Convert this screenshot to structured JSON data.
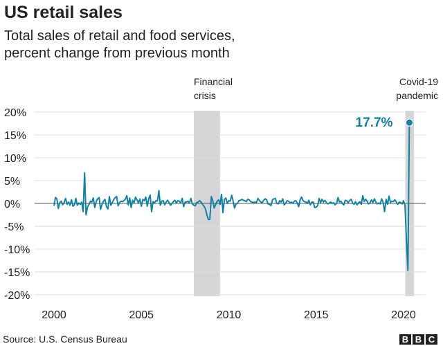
{
  "chart_data": {
    "type": "line",
    "title": "US retail sales",
    "subtitle_lines": [
      "Total sales of retail and food services,",
      "percent change from previous month"
    ],
    "xlabel": "",
    "ylabel": "",
    "start": "2000-01",
    "frequency": "monthly",
    "ylim": [
      -20,
      20
    ],
    "xlim": [
      2000,
      2020.5
    ],
    "yticks": [
      20,
      15,
      10,
      5,
      0,
      -5,
      -10,
      -15,
      -20
    ],
    "ytick_labels": [
      "20%",
      "15%",
      "10%",
      "5%",
      "0%",
      "-5%",
      "-10%",
      "-15%",
      "-20%"
    ],
    "xticks": [
      2000,
      2005,
      2010,
      2015,
      2020
    ],
    "xtick_labels": [
      "2000",
      "2005",
      "2010",
      "2015",
      "2020"
    ],
    "grid": true,
    "color": "#1380a1",
    "shade_color": "#d5d5d8",
    "series": [
      {
        "name": "Monthly % change",
        "values": [
          -0.5,
          1.3,
          1.0,
          -1.1,
          0.2,
          0.5,
          -0.3,
          0.2,
          1.1,
          -0.2,
          0.3,
          -0.4,
          0.8,
          -0.6,
          -0.3,
          1.1,
          -0.4,
          0.1,
          -0.2,
          0.3,
          -1.8,
          6.7,
          -2.5,
          -0.8,
          -0.2,
          0.5,
          0.3,
          1.2,
          -0.9,
          0.4,
          1.0,
          1.3,
          -1.3,
          -0.2,
          0.5,
          0.9,
          -0.7,
          -1.2,
          1.5,
          -0.4,
          0.2,
          0.8,
          1.3,
          1.5,
          -0.5,
          0.2,
          0.5,
          0.4,
          0.6,
          0.9,
          1.7,
          -0.3,
          1.2,
          -0.9,
          0.7,
          0.2,
          1.4,
          0.8,
          0.1,
          1.0,
          -0.6,
          0.9,
          0.6,
          1.4,
          -0.6,
          1.0,
          1.8,
          -1.8,
          0.4,
          0.1,
          0.6,
          0.5,
          2.8,
          -0.4,
          0.5,
          0.6,
          -0.3,
          0.3,
          0.7,
          0.2,
          -0.4,
          0.0,
          0.4,
          0.7,
          0.1,
          0.6,
          0.5,
          0.1,
          1.1,
          -0.7,
          0.3,
          0.3,
          0.5,
          0.1,
          1.1,
          -0.1,
          -0.4,
          -0.5,
          0.2,
          0.3,
          0.6,
          0.3,
          -0.2,
          -0.6,
          -1.2,
          -2.5,
          -3.5,
          -3.5,
          1.5,
          0.6,
          -1.0,
          -0.2,
          0.5,
          0.8,
          -0.2,
          2.0,
          -2.0,
          0.9,
          1.2,
          0.0,
          0.6,
          0.5,
          1.8,
          0.5,
          -1.0,
          -0.1,
          0.0,
          0.6,
          0.7,
          0.9,
          0.7,
          0.6,
          0.4,
          0.9,
          0.8,
          0.4,
          0.3,
          0.2,
          0.3,
          0.2,
          1.1,
          0.6,
          0.3,
          0.2,
          0.7,
          1.0,
          0.8,
          -0.1,
          -0.2,
          -0.5,
          0.8,
          1.0,
          1.1,
          0.0,
          -0.1,
          0.6,
          0.3,
          1.0,
          -0.3,
          0.0,
          0.6,
          0.5,
          0.1,
          0.3,
          0.0,
          0.5,
          0.6,
          0.1,
          -0.7,
          0.8,
          1.4,
          0.6,
          0.4,
          0.3,
          0.0,
          0.7,
          -0.3,
          0.3,
          0.3,
          -0.9,
          -0.8,
          -0.5,
          1.1,
          0.2,
          0.9,
          0.3,
          0.7,
          0.2,
          -0.1,
          0.1,
          0.3,
          0.0,
          0.2,
          -0.3,
          0.0,
          1.3,
          0.3,
          0.5,
          0.0,
          -0.3,
          0.7,
          0.6,
          0.2,
          0.6,
          0.9,
          0.1,
          -0.2,
          0.4,
          -0.3,
          0.1,
          0.4,
          -0.2,
          1.7,
          0.4,
          0.9,
          0.5,
          -0.1,
          0.1,
          0.8,
          0.2,
          1.0,
          0.3,
          -0.1,
          0.1,
          -0.1,
          1.0,
          0.3,
          -1.8,
          0.9,
          -0.2,
          1.6,
          0.2,
          0.5,
          0.4,
          0.8,
          0.3,
          -0.2,
          0.3,
          0.2,
          -0.1,
          0.6,
          -0.5,
          -8.3,
          -14.7,
          17.7
        ]
      }
    ],
    "shaded_periods": [
      {
        "label_lines": [
          "Financial",
          "crisis"
        ],
        "from": 2008.0,
        "to": 2009.5,
        "label_align": "left"
      },
      {
        "label_lines": [
          "Covid-19",
          "pandemic"
        ],
        "from": 2020.1,
        "to": 2020.6,
        "label_align": "right"
      }
    ],
    "annotations": [
      {
        "text": "17.7%",
        "x": 2020.33,
        "y": 17.7
      }
    ]
  },
  "source": "Source: U.S. Census Bureau",
  "logo": [
    "B",
    "B",
    "C"
  ]
}
